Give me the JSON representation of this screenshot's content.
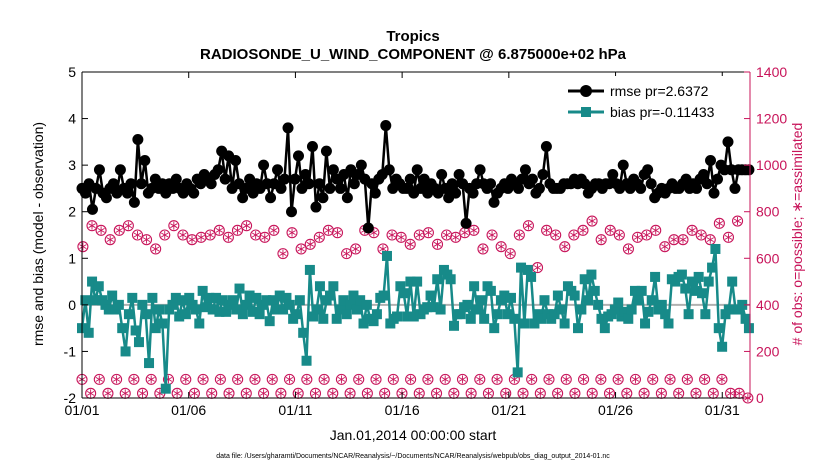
{
  "chart_data": {
    "type": "line",
    "title": "Tropics",
    "subtitle": "RADIOSONDE_U_WIND_COMPONENT @ 6.875000e+02 hPa",
    "xlabel": "Jan.01,2014 00:00:00 start",
    "ylabel": "rmse and bias (model - observation)",
    "ylabel_right": "# of obs: o=possible; ∗=assimilated",
    "footnote": "data file: /Users/gharamti/Documents/NCAR/Reanalysis/~/Documents/NCAR/Reanalysis/webpub/obs_diag_output_2014-01.nc",
    "x_range_days": [
      1,
      32.3
    ],
    "x_ticks": [
      1,
      6,
      11,
      16,
      21,
      26,
      31
    ],
    "x_tick_labels": [
      "01/01",
      "01/06",
      "01/11",
      "01/16",
      "01/21",
      "01/26",
      "01/31"
    ],
    "ylim": [
      -2,
      5
    ],
    "y_ticks": [
      -2,
      -1,
      0,
      1,
      2,
      3,
      4,
      5
    ],
    "y_tick_labels": [
      "-2",
      "-1",
      "0",
      "1",
      "2",
      "3",
      "4",
      "5"
    ],
    "ylim_right": [
      0,
      1400
    ],
    "y_ticks_right": [
      0,
      200,
      400,
      600,
      800,
      1000,
      1200,
      1400
    ],
    "y_tick_labels_right": [
      "0",
      "200",
      "400",
      "600",
      "800",
      "1000",
      "1200",
      "1400"
    ],
    "legend_position": "top-right",
    "colors": {
      "rmse": "#000000",
      "bias": "#178a89",
      "obs": "#c8145a",
      "zero_line": "#b0b0b0"
    },
    "series": [
      {
        "name": "rmse pr=2.6372",
        "marker": "circle",
        "values": [
          2.5,
          2.4,
          2.6,
          2.05,
          2.5,
          2.9,
          2.4,
          2.3,
          2.5,
          2.6,
          2.4,
          2.9,
          2.5,
          2.4,
          2.6,
          2.2,
          3.55,
          2.6,
          3.1,
          2.4,
          2.5,
          2.7,
          2.5,
          2.6,
          2.4,
          2.6,
          2.5,
          2.7,
          2.5,
          2.4,
          2.6,
          2.5,
          2.4,
          2.7,
          2.6,
          2.8,
          2.7,
          2.6,
          2.8,
          2.9,
          3.3,
          2.7,
          3.2,
          2.5,
          3.1,
          2.6,
          2.3,
          2.5,
          2.7,
          2.4,
          2.6,
          2.5,
          3.0,
          2.6,
          2.3,
          2.6,
          2.9,
          2.5,
          2.7,
          3.8,
          2.0,
          2.7,
          3.2,
          2.5,
          2.8,
          2.6,
          3.4,
          2.1,
          2.6,
          2.3,
          3.3,
          2.5,
          2.9,
          2.7,
          2.5,
          2.8,
          2.3,
          2.9,
          2.6,
          2.8,
          3.0,
          2.7,
          1.65,
          2.6,
          2.4,
          2.7,
          2.8,
          3.85,
          2.9,
          2.5,
          2.7,
          2.6,
          2.5,
          2.5,
          2.7,
          2.4,
          2.9,
          2.5,
          2.7,
          2.4,
          2.6,
          2.5,
          2.4,
          2.8,
          2.5,
          2.3,
          2.6,
          2.4,
          2.8,
          2.6,
          1.75,
          2.5,
          2.4,
          2.6,
          2.9,
          2.6,
          2.5,
          2.6,
          2.2,
          2.4,
          2.5,
          2.6,
          2.5,
          2.7,
          2.6,
          2.5,
          2.7,
          2.9,
          2.6,
          2.7,
          2.4,
          2.5,
          2.8,
          3.4,
          2.6,
          2.5,
          2.5,
          2.5,
          2.6,
          2.6,
          2.6,
          2.7,
          2.6,
          2.7,
          2.6,
          2.4,
          2.5,
          2.6,
          2.6,
          2.5,
          2.6,
          2.6,
          2.8,
          2.6,
          2.5,
          3.0,
          2.6,
          2.5,
          2.7,
          2.6,
          2.5,
          2.8,
          2.9,
          2.6,
          2.3,
          2.4,
          2.5,
          2.4,
          2.5,
          2.6,
          2.5,
          2.5,
          2.6,
          2.7,
          2.5,
          2.6,
          2.5,
          2.7,
          2.8,
          2.6,
          3.1,
          2.4,
          2.7,
          3.0,
          2.9,
          3.5,
          2.9,
          2.5,
          2.9,
          2.9,
          2.9,
          2.9
        ]
      },
      {
        "name": "bias pr=-0.11433",
        "marker": "square",
        "values": [
          -0.5,
          0.1,
          -0.6,
          0.5,
          0.1,
          0.4,
          0.1,
          0.0,
          -0.1,
          0.2,
          -0.1,
          0.0,
          -0.5,
          -1.0,
          -0.2,
          0.15,
          -0.55,
          -0.8,
          0.0,
          -0.2,
          -1.25,
          0.15,
          -0.5,
          -0.1,
          -0.4,
          -1.8,
          -0.1,
          0.0,
          0.15,
          -0.25,
          0.1,
          -0.2,
          0.15,
          0.0,
          -0.1,
          -0.4,
          0.3,
          -0.05,
          0.15,
          -0.1,
          0.15,
          -0.15,
          0.1,
          -0.15,
          0.0,
          0.1,
          -0.1,
          0.35,
          -0.2,
          0.0,
          0.2,
          -0.15,
          0.15,
          -0.2,
          0.0,
          0.1,
          -0.35,
          0.1,
          -0.1,
          0.2,
          -0.1,
          0.15,
          0.0,
          -0.3,
          -0.2,
          0.1,
          -0.6,
          -1.2,
          0.75,
          -0.25,
          -0.1,
          0.4,
          -0.3,
          0.1,
          0.2,
          0.4,
          -0.3,
          -0.1,
          0.1,
          -0.2,
          0.0,
          0.2,
          -0.1,
          0.1,
          -0.4,
          0.0,
          -0.3,
          -0.35,
          -0.2,
          0.15,
          0.2,
          1.05,
          -0.4,
          -0.3,
          -0.25,
          0.4,
          0.25,
          -0.25,
          0.5,
          -0.25,
          0.5,
          -0.2,
          -0.1,
          -0.05,
          0.2,
          -0.05,
          0.55,
          -0.1,
          0.75,
          0.65,
          0.55,
          -0.45,
          -0.2,
          -0.2,
          -0.05,
          0.0,
          -0.3,
          0.4,
          -0.1,
          0.1,
          -0.3,
          0.4,
          0.3,
          -0.5,
          -0.2,
          0.1,
          0.2,
          -0.2,
          0.15,
          -0.3,
          -1.45,
          0.8,
          -0.4,
          0.75,
          0.6,
          -0.4,
          -0.2,
          -0.3,
          0.1,
          -0.2,
          -0.3,
          -0.2,
          0.2,
          -0.1,
          -0.4,
          0.4,
          0.3,
          0.2,
          -0.5,
          -0.1,
          0.55,
          0.1,
          0.65,
          0.3,
          0.0,
          -0.3,
          -0.5,
          -0.25,
          -0.2,
          -0.1,
          0.05,
          -0.25,
          -0.15,
          -0.3,
          -0.1,
          0.3,
          0.1,
          0.3,
          -0.4,
          -0.15,
          0.1,
          0.6,
          -0.1,
          0.0,
          -0.2,
          -0.4,
          0.55,
          0.5,
          0.6,
          0.65,
          0.35,
          -0.2,
          0.5,
          0.3,
          0.6,
          0.25,
          -0.2,
          0.5,
          0.8,
          1.2,
          -0.5,
          -0.9,
          -0.2,
          -0.1,
          0.5,
          -0.1,
          -0.1,
          0.0,
          -0.3,
          -0.5
        ]
      }
    ],
    "obs_count_series": [
      {
        "name": "possible",
        "marker": "circle-open",
        "upper_values": [
          650,
          740,
          720,
          680,
          720,
          740,
          700,
          680,
          640,
          700,
          740,
          700,
          680,
          690,
          700,
          720,
          690,
          720,
          740,
          700,
          690,
          720,
          620,
          710,
          640,
          660,
          690,
          720,
          710,
          620,
          640,
          720,
          710,
          640,
          700,
          690,
          660,
          700,
          710,
          660,
          700,
          690,
          710,
          720,
          640,
          700,
          650,
          620,
          700,
          740,
          560,
          720,
          700,
          650,
          700,
          720,
          760,
          680,
          720,
          700,
          640,
          690,
          700,
          720,
          650,
          680,
          680,
          720,
          700,
          680,
          750,
          690,
          760
        ],
        "lower_values": [
          80,
          20,
          80,
          20,
          80,
          20,
          80,
          20,
          80,
          20,
          80,
          20,
          80,
          20,
          80,
          20,
          80,
          20,
          80,
          20,
          80,
          20,
          80,
          20,
          80,
          20,
          80,
          20,
          80,
          20,
          80,
          20,
          80,
          20,
          80,
          20,
          80,
          20,
          80,
          20,
          80,
          20,
          80,
          20,
          80,
          20,
          80,
          20,
          80,
          20,
          80,
          20,
          80,
          20,
          80,
          20,
          80,
          20,
          80,
          20,
          80,
          20,
          80,
          20,
          80,
          20,
          80,
          20,
          80,
          20,
          80,
          20,
          80,
          20,
          80,
          20,
          20,
          0
        ]
      }
    ]
  },
  "legend": {
    "rmse_label": "rmse pr=2.6372",
    "bias_label": "bias pr=-0.11433"
  }
}
